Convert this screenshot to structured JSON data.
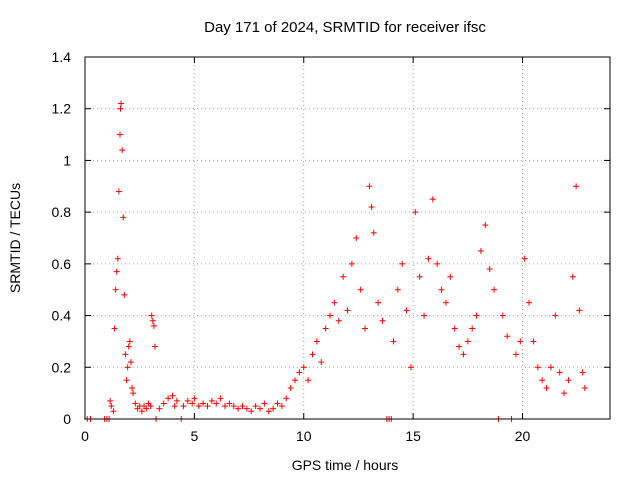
{
  "chart_data": {
    "type": "scatter",
    "title": "Day 171 of 2024, SRMTID for receiver ifsc",
    "xlabel": "GPS time / hours",
    "ylabel": "SRMTID / TECUs",
    "xlim": [
      0,
      24
    ],
    "ylim": [
      0,
      1.4
    ],
    "x_ticks": [
      0,
      5,
      10,
      15,
      20
    ],
    "y_ticks": [
      0,
      0.2,
      0.4,
      0.6,
      0.8,
      1,
      1.2,
      1.4
    ],
    "x_tick_labels": [
      "0",
      "5",
      "10",
      "15",
      "20"
    ],
    "y_tick_labels": [
      "0",
      "0.2",
      "0.4",
      "0.6",
      "0.8",
      "1",
      "1.2",
      "1.4"
    ],
    "grid": true,
    "marker": "+",
    "series_color": "#ff0000",
    "series": [
      {
        "name": "SRMTID",
        "points": [
          [
            0.1,
            0.0
          ],
          [
            0.25,
            0.0
          ],
          [
            0.9,
            0.0
          ],
          [
            1.0,
            0.0
          ],
          [
            1.1,
            0.0
          ],
          [
            1.15,
            0.07
          ],
          [
            1.2,
            0.05
          ],
          [
            1.3,
            0.03
          ],
          [
            1.35,
            0.35
          ],
          [
            1.4,
            0.5
          ],
          [
            1.45,
            0.57
          ],
          [
            1.5,
            0.62
          ],
          [
            1.55,
            0.88
          ],
          [
            1.6,
            1.1
          ],
          [
            1.62,
            1.2
          ],
          [
            1.65,
            1.22
          ],
          [
            1.7,
            1.04
          ],
          [
            1.75,
            0.78
          ],
          [
            1.8,
            0.48
          ],
          [
            1.85,
            0.25
          ],
          [
            1.9,
            0.15
          ],
          [
            1.95,
            0.2
          ],
          [
            2.0,
            0.28
          ],
          [
            2.05,
            0.3
          ],
          [
            2.1,
            0.22
          ],
          [
            2.15,
            0.12
          ],
          [
            2.2,
            0.1
          ],
          [
            2.3,
            0.06
          ],
          [
            2.4,
            0.04
          ],
          [
            2.5,
            0.05
          ],
          [
            2.6,
            0.03
          ],
          [
            2.7,
            0.05
          ],
          [
            2.8,
            0.04
          ],
          [
            2.9,
            0.06
          ],
          [
            3.0,
            0.05
          ],
          [
            3.05,
            0.4
          ],
          [
            3.1,
            0.38
          ],
          [
            3.15,
            0.36
          ],
          [
            3.2,
            0.28
          ],
          [
            3.25,
            0.0
          ],
          [
            3.4,
            0.04
          ],
          [
            3.6,
            0.06
          ],
          [
            3.8,
            0.08
          ],
          [
            4.0,
            0.09
          ],
          [
            4.1,
            0.05
          ],
          [
            4.2,
            0.07
          ],
          [
            4.4,
            0.0
          ],
          [
            4.5,
            0.05
          ],
          [
            4.7,
            0.07
          ],
          [
            4.9,
            0.06
          ],
          [
            5.0,
            0.08
          ],
          [
            5.2,
            0.05
          ],
          [
            5.4,
            0.06
          ],
          [
            5.6,
            0.05
          ],
          [
            5.8,
            0.07
          ],
          [
            6.0,
            0.06
          ],
          [
            6.2,
            0.08
          ],
          [
            6.4,
            0.05
          ],
          [
            6.6,
            0.06
          ],
          [
            6.8,
            0.05
          ],
          [
            7.0,
            0.04
          ],
          [
            7.2,
            0.05
          ],
          [
            7.4,
            0.04
          ],
          [
            7.6,
            0.03
          ],
          [
            7.8,
            0.05
          ],
          [
            8.0,
            0.04
          ],
          [
            8.2,
            0.06
          ],
          [
            8.4,
            0.03
          ],
          [
            8.6,
            0.04
          ],
          [
            8.8,
            0.06
          ],
          [
            9.0,
            0.05
          ],
          [
            9.2,
            0.08
          ],
          [
            9.4,
            0.12
          ],
          [
            9.6,
            0.15
          ],
          [
            9.8,
            0.18
          ],
          [
            10.0,
            0.2
          ],
          [
            10.2,
            0.15
          ],
          [
            10.4,
            0.25
          ],
          [
            10.6,
            0.3
          ],
          [
            10.8,
            0.22
          ],
          [
            11.0,
            0.35
          ],
          [
            11.2,
            0.4
          ],
          [
            11.4,
            0.45
          ],
          [
            11.6,
            0.38
          ],
          [
            11.8,
            0.55
          ],
          [
            12.0,
            0.42
          ],
          [
            12.2,
            0.6
          ],
          [
            12.4,
            0.7
          ],
          [
            12.6,
            0.5
          ],
          [
            12.8,
            0.35
          ],
          [
            13.0,
            0.9
          ],
          [
            13.1,
            0.82
          ],
          [
            13.2,
            0.72
          ],
          [
            13.4,
            0.45
          ],
          [
            13.6,
            0.38
          ],
          [
            13.8,
            0.0
          ],
          [
            13.9,
            0.0
          ],
          [
            14.0,
            0.0
          ],
          [
            14.1,
            0.3
          ],
          [
            14.3,
            0.5
          ],
          [
            14.5,
            0.6
          ],
          [
            14.7,
            0.42
          ],
          [
            14.9,
            0.2
          ],
          [
            15.1,
            0.8
          ],
          [
            15.3,
            0.55
          ],
          [
            15.5,
            0.4
          ],
          [
            15.7,
            0.62
          ],
          [
            15.9,
            0.85
          ],
          [
            16.1,
            0.6
          ],
          [
            16.3,
            0.5
          ],
          [
            16.5,
            0.45
          ],
          [
            16.7,
            0.55
          ],
          [
            16.9,
            0.35
          ],
          [
            17.1,
            0.28
          ],
          [
            17.3,
            0.25
          ],
          [
            17.5,
            0.3
          ],
          [
            17.7,
            0.35
          ],
          [
            17.9,
            0.4
          ],
          [
            18.1,
            0.65
          ],
          [
            18.3,
            0.75
          ],
          [
            18.5,
            0.58
          ],
          [
            18.7,
            0.5
          ],
          [
            18.9,
            0.0
          ],
          [
            19.1,
            0.4
          ],
          [
            19.3,
            0.32
          ],
          [
            19.5,
            0.0
          ],
          [
            19.7,
            0.25
          ],
          [
            19.9,
            0.3
          ],
          [
            20.1,
            0.62
          ],
          [
            20.3,
            0.45
          ],
          [
            20.5,
            0.3
          ],
          [
            20.7,
            0.2
          ],
          [
            20.9,
            0.15
          ],
          [
            21.1,
            0.12
          ],
          [
            21.3,
            0.2
          ],
          [
            21.5,
            0.4
          ],
          [
            21.7,
            0.18
          ],
          [
            21.9,
            0.1
          ],
          [
            22.1,
            0.15
          ],
          [
            22.3,
            0.55
          ],
          [
            22.45,
            0.9
          ],
          [
            22.6,
            0.42
          ],
          [
            22.75,
            0.18
          ],
          [
            22.85,
            0.12
          ]
        ]
      }
    ]
  }
}
